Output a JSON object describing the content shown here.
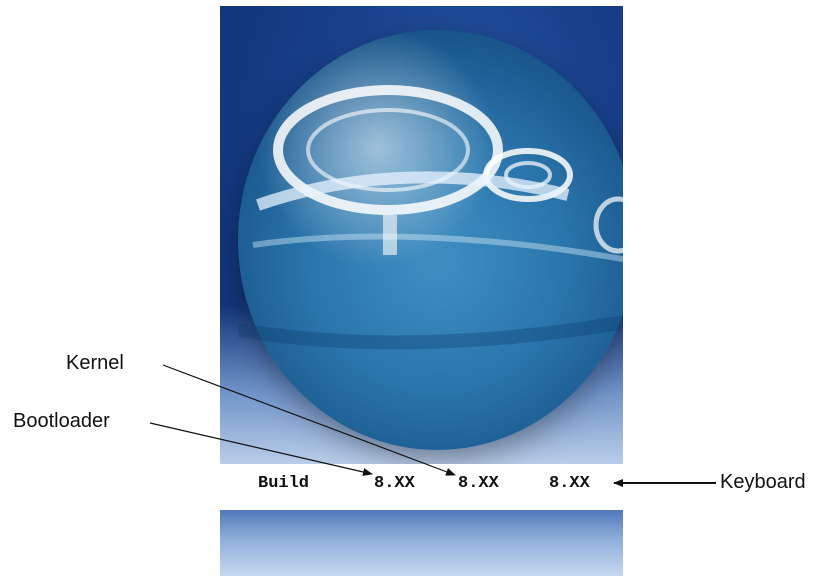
{
  "screen": {
    "build_label": "Build",
    "bootloader_version": "8.XX",
    "kernel_version": "8.XX",
    "keyboard_version": "8.XX"
  },
  "callouts": {
    "kernel": "Kernel",
    "bootloader": "Bootloader",
    "keyboard": "Keyboard"
  },
  "colors": {
    "screen_blue": "#173f8a",
    "sphere_blue": "#2b77ad",
    "text": "#111111"
  }
}
